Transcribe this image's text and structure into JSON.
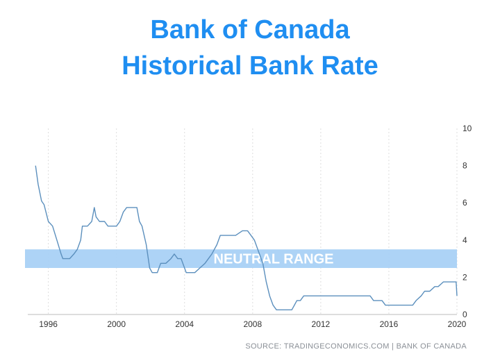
{
  "header": {
    "title_line_1": "Bank of Canada",
    "title_line_2": "Historical Bank Rate"
  },
  "footer": {
    "source": "SOURCE: TRADINGECONOMICS.COM | BANK OF CANADA"
  },
  "colors": {
    "title": "#1f8ef1",
    "line": "#5b8fbd",
    "band": "#a9d1f5",
    "band_text": "#ffffff",
    "tick_text": "#333333",
    "grid": "#dddddd"
  },
  "chart_data": {
    "type": "line",
    "title": "Bank of Canada Historical Bank Rate",
    "xlabel": "",
    "ylabel": "",
    "xlim": [
      1995.2,
      2020.0
    ],
    "ylim": [
      0,
      10
    ],
    "x_ticks": [
      "1996",
      "2000",
      "2004",
      "2008",
      "2012",
      "2016",
      "2020"
    ],
    "y_ticks": [
      "0",
      "2",
      "4",
      "6",
      "8",
      "10"
    ],
    "y_axis_position": "right",
    "grid": "vertical",
    "legend": "none",
    "annotations": [
      {
        "label": "NEUTRAL RANGE",
        "y_from": 2.5,
        "y_to": 3.5
      }
    ],
    "series": [
      {
        "x": [
          1995.25,
          1995.4,
          1995.6,
          1995.75,
          1996.0,
          1996.25,
          1996.5,
          1996.75,
          1996.85,
          1997.0,
          1997.25,
          1997.5,
          1997.7,
          1997.9,
          1998.0,
          1998.3,
          1998.55,
          1998.7,
          1998.8,
          1999.0,
          1999.3,
          1999.5,
          1999.9,
          2000.0,
          2000.2,
          2000.4,
          2000.6,
          2000.8,
          2001.0,
          2001.2,
          2001.35,
          2001.5,
          2001.75,
          2001.95,
          2002.1,
          2002.4,
          2002.6,
          2002.9,
          2003.2,
          2003.4,
          2003.6,
          2003.8,
          2004.1,
          2004.3,
          2004.6,
          2004.9,
          2005.2,
          2005.6,
          2005.9,
          2006.1,
          2006.4,
          2006.6,
          2007.0,
          2007.4,
          2007.7,
          2007.9,
          2008.1,
          2008.3,
          2008.6,
          2008.8,
          2009.0,
          2009.2,
          2009.4,
          2010.3,
          2010.45,
          2010.6,
          2010.8,
          2011.0,
          2014.9,
          2015.1,
          2015.6,
          2015.8,
          2017.4,
          2017.6,
          2017.9,
          2018.1,
          2018.4,
          2018.7,
          2018.9,
          2019.2,
          2019.95,
          2020.0
        ],
        "y": [
          8.0,
          7.0,
          6.1,
          5.9,
          5.0,
          4.75,
          4.0,
          3.25,
          3.0,
          3.0,
          3.0,
          3.25,
          3.5,
          4.0,
          4.75,
          4.75,
          5.0,
          5.75,
          5.25,
          5.0,
          5.0,
          4.75,
          4.75,
          4.75,
          5.0,
          5.5,
          5.75,
          5.75,
          5.75,
          5.75,
          5.0,
          4.75,
          3.75,
          2.5,
          2.25,
          2.25,
          2.75,
          2.75,
          3.0,
          3.25,
          3.0,
          3.0,
          2.25,
          2.25,
          2.25,
          2.5,
          2.75,
          3.25,
          3.75,
          4.25,
          4.25,
          4.25,
          4.25,
          4.5,
          4.5,
          4.25,
          4.0,
          3.5,
          2.75,
          1.75,
          1.0,
          0.5,
          0.25,
          0.25,
          0.5,
          0.75,
          0.75,
          1.0,
          1.0,
          0.75,
          0.75,
          0.5,
          0.5,
          0.75,
          1.0,
          1.25,
          1.25,
          1.5,
          1.5,
          1.75,
          1.75,
          1.0
        ]
      }
    ]
  }
}
